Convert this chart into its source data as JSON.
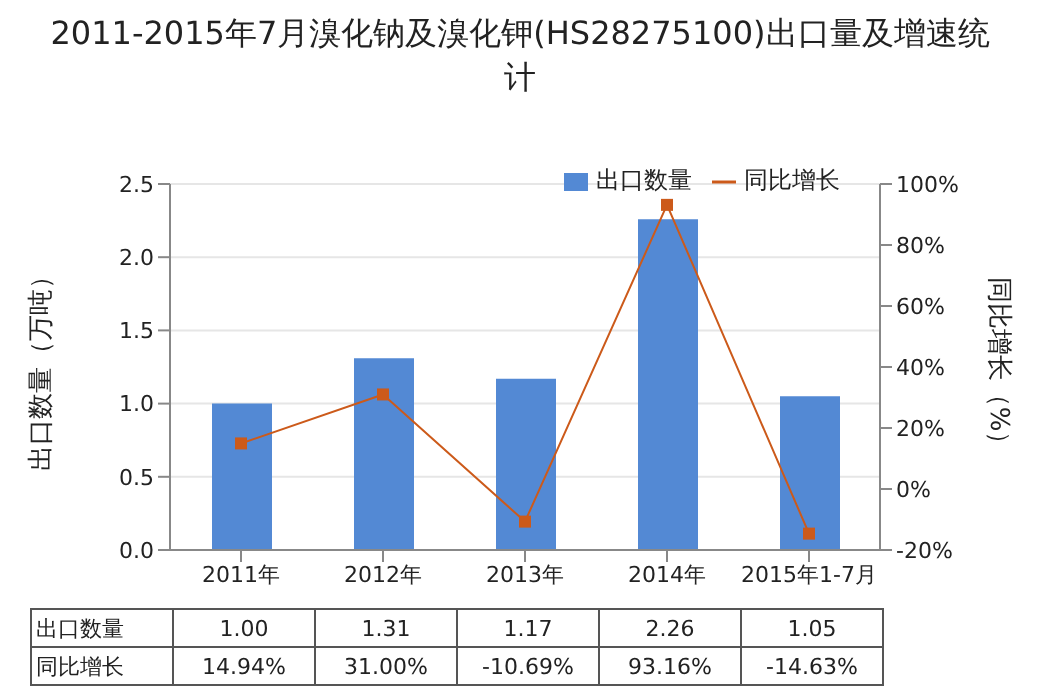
{
  "chart_data": {
    "type": "bar",
    "title": "2011-2015年7月溴化钠及溴化钾(HS28275100)出口量及增速统计",
    "categories": [
      "2011年",
      "2012年",
      "2013年",
      "2014年",
      "2015年1-7月"
    ],
    "series": [
      {
        "name": "出口数量",
        "color": "#5389d4",
        "values": [
          1.0,
          1.31,
          1.17,
          2.26,
          1.05
        ],
        "value_labels": [
          "1.00",
          "1.31",
          "1.17",
          "2.26",
          "1.05"
        ]
      },
      {
        "name": "同比增长",
        "type": "line",
        "axis": "y2",
        "color": "#cc5a1a",
        "marker": "square",
        "values": [
          14.94,
          31.0,
          -10.69,
          93.16,
          -14.63
        ],
        "value_labels": [
          "14.94%",
          "31.00%",
          "-10.69%",
          "93.16%",
          "-14.63%"
        ]
      }
    ],
    "ylabel": "出口数量（万吨）",
    "y2label": "同比增长（%）",
    "ylim": [
      0,
      2.5
    ],
    "yticks": [
      {
        "value": 0,
        "label": "0.0"
      },
      {
        "value": 0.5,
        "label": "0.5"
      },
      {
        "value": 1,
        "label": "1.0"
      },
      {
        "value": 1.5,
        "label": "1.5"
      },
      {
        "value": 2,
        "label": "2.0"
      },
      {
        "value": 2.5,
        "label": "2.5"
      }
    ],
    "y2lim": [
      -20,
      100
    ],
    "y2ticks": [
      {
        "value": -20,
        "label": "-20%"
      },
      {
        "value": 0,
        "label": "0%"
      },
      {
        "value": 20,
        "label": "20%"
      },
      {
        "value": 40,
        "label": "40%"
      },
      {
        "value": 60,
        "label": "60%"
      },
      {
        "value": 80,
        "label": "80%"
      },
      {
        "value": 100,
        "label": "100%"
      }
    ],
    "grid": "y",
    "legend": "top right"
  }
}
